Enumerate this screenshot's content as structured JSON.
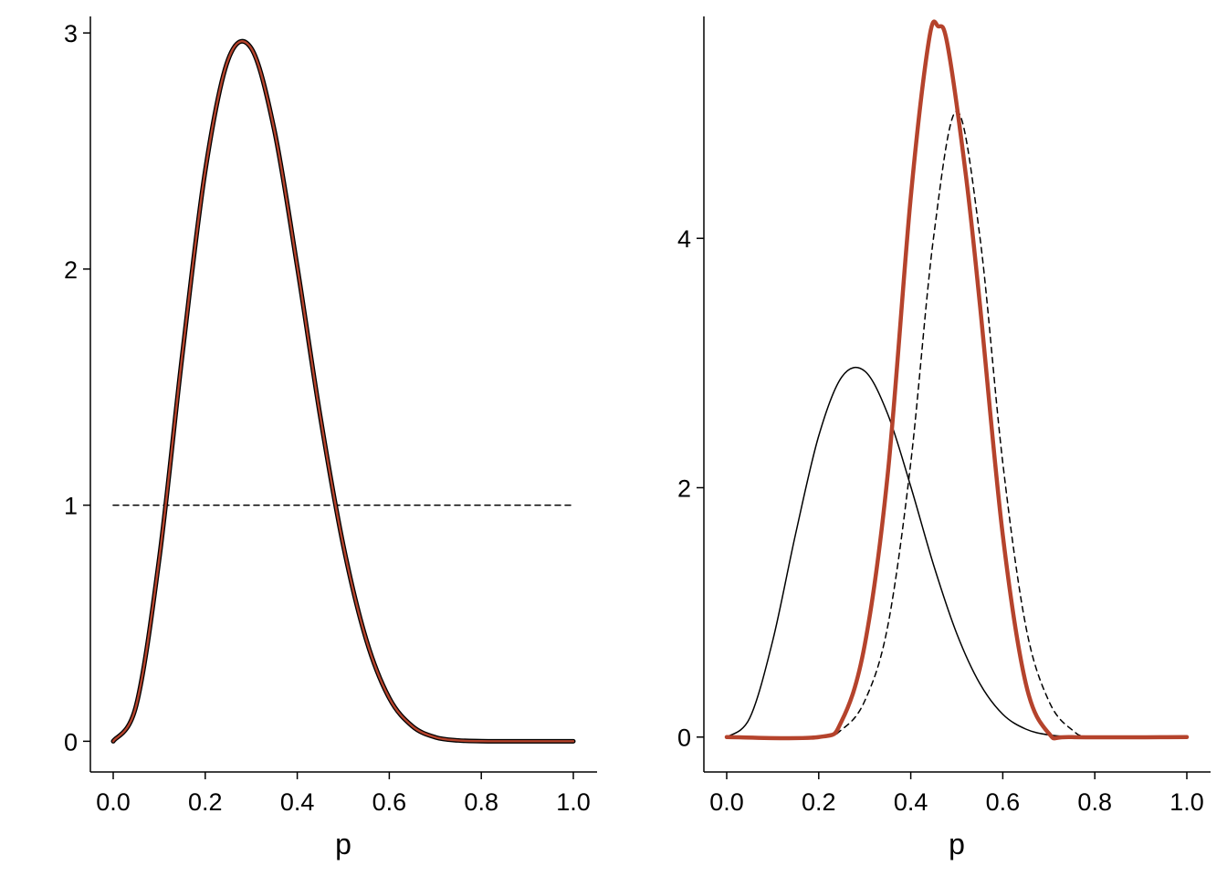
{
  "chart_data": [
    {
      "type": "line",
      "xlabel": "p",
      "ylabel": "",
      "xlim": [
        0,
        1
      ],
      "ylim": [
        -0.13,
        3.07
      ],
      "x_ticks": [
        "0.0",
        "0.2",
        "0.4",
        "0.6",
        "0.8",
        "1.0"
      ],
      "y_ticks": [
        "0",
        "1",
        "2",
        "3"
      ],
      "grid": false,
      "legend": "none",
      "series": [
        {
          "key": "prior_flat",
          "style": "dashed",
          "color": "#000000",
          "x": [
            0,
            1
          ],
          "y": [
            1,
            1
          ]
        },
        {
          "key": "beta_4_8_outline",
          "style": "solid",
          "color": "#000000",
          "x": [
            0,
            0.05,
            0.1,
            0.15,
            0.2,
            0.25,
            0.3,
            0.35,
            0.4,
            0.45,
            0.5,
            0.55,
            0.6,
            0.65,
            0.7,
            0.75,
            0.8,
            0.85,
            0.9,
            0.95,
            1
          ],
          "y": [
            0,
            0.152,
            0.773,
            1.634,
            2.416,
            2.888,
            2.935,
            2.59,
            2.01,
            1.376,
            0.83,
            0.43,
            0.183,
            0.064,
            0.017,
            0.0036,
            0.0005,
            0.0001,
            0,
            0,
            0
          ]
        },
        {
          "key": "beta_4_8",
          "style": "solid",
          "color": "#b5432c",
          "x": [
            0,
            0.05,
            0.1,
            0.15,
            0.2,
            0.25,
            0.3,
            0.35,
            0.4,
            0.45,
            0.5,
            0.55,
            0.6,
            0.65,
            0.7,
            0.75,
            0.8,
            0.85,
            0.9,
            0.95,
            1
          ],
          "y": [
            0,
            0.152,
            0.773,
            1.634,
            2.416,
            2.888,
            2.935,
            2.59,
            2.01,
            1.376,
            0.83,
            0.43,
            0.183,
            0.064,
            0.017,
            0.0036,
            0.0005,
            0.0001,
            0,
            0,
            0
          ]
        }
      ]
    },
    {
      "type": "line",
      "xlabel": "p",
      "ylabel": "",
      "xlim": [
        0,
        1
      ],
      "ylim": [
        -0.28,
        5.78
      ],
      "x_ticks": [
        "0.0",
        "0.2",
        "0.4",
        "0.6",
        "0.8",
        "1.0"
      ],
      "y_ticks": [
        "0",
        "2",
        "4"
      ],
      "grid": false,
      "legend": "none",
      "series": [
        {
          "key": "beta_4_8_thin",
          "style": "solid",
          "color": "#000000",
          "x": [
            0,
            0.05,
            0.1,
            0.15,
            0.2,
            0.25,
            0.3,
            0.35,
            0.4,
            0.45,
            0.5,
            0.55,
            0.6,
            0.65,
            0.7,
            0.75,
            0.8,
            0.85,
            0.9,
            0.95,
            1
          ],
          "y": [
            0,
            0.152,
            0.773,
            1.634,
            2.416,
            2.888,
            2.935,
            2.59,
            2.01,
            1.376,
            0.83,
            0.43,
            0.183,
            0.064,
            0.017,
            0.0036,
            0.0005,
            0.0001,
            0,
            0,
            0
          ]
        },
        {
          "key": "likelihood_dashed",
          "style": "dashed",
          "color": "#000000",
          "x": [
            0,
            0.2,
            0.25,
            0.3,
            0.35,
            0.4,
            0.45,
            0.5,
            0.55,
            0.6,
            0.65,
            0.7,
            0.75,
            0.8,
            1
          ],
          "y": [
            0,
            0,
            0.06,
            0.29,
            0.89,
            2.2,
            4.02,
            5.02,
            4.02,
            2.2,
            0.89,
            0.29,
            0.06,
            0,
            0
          ]
        },
        {
          "key": "posterior",
          "style": "solid-thick",
          "color": "#b5432c",
          "x": [
            0,
            0.2,
            0.25,
            0.3,
            0.35,
            0.4,
            0.44,
            0.46,
            0.48,
            0.52,
            0.55,
            0.6,
            0.65,
            0.7,
            0.75,
            1
          ],
          "y": [
            0,
            0,
            0.13,
            0.74,
            2.11,
            4.33,
            5.6,
            5.7,
            5.55,
            4.5,
            3.48,
            1.62,
            0.43,
            0.03,
            0,
            0
          ]
        }
      ]
    }
  ]
}
